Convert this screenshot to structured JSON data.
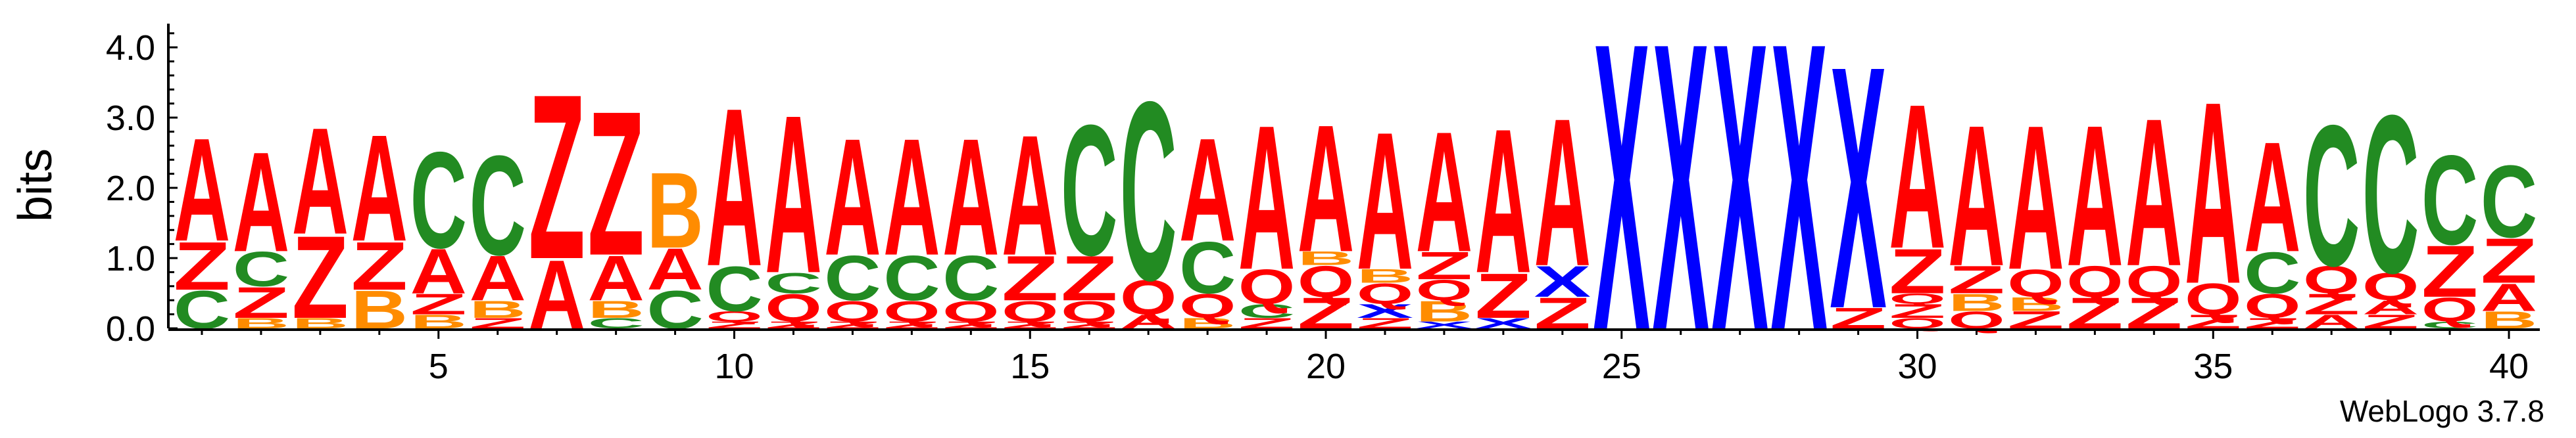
{
  "chart_data": {
    "type": "sequence-logo",
    "ylabel": "bits",
    "ylim": [
      0,
      4.3
    ],
    "y_ticks": [
      "0.0",
      "1.0",
      "2.0",
      "3.0",
      "4.0"
    ],
    "x_ticks": [
      "5",
      "10",
      "15",
      "20",
      "25",
      "30",
      "35",
      "40"
    ],
    "positions": 40,
    "colors": {
      "A": "#ff0000",
      "C": "#228b22",
      "Z": "#ff0000",
      "B": "#ff8c00",
      "Q": "#ff0000",
      "X": "#0000ff"
    },
    "columns": [
      {
        "pos": 1,
        "stack": [
          [
            "C",
            0.55
          ],
          [
            "Z",
            0.7
          ],
          [
            "A",
            1.5
          ]
        ]
      },
      {
        "pos": 2,
        "stack": [
          [
            "B",
            0.15
          ],
          [
            "Z",
            0.45
          ],
          [
            "C",
            0.5
          ],
          [
            "A",
            1.45
          ]
        ]
      },
      {
        "pos": 3,
        "stack": [
          [
            "B",
            0.15
          ],
          [
            "Z",
            1.2
          ],
          [
            "A",
            1.55
          ]
        ]
      },
      {
        "pos": 4,
        "stack": [
          [
            "B",
            0.55
          ],
          [
            "Z",
            0.7
          ],
          [
            "A",
            1.55
          ]
        ]
      },
      {
        "pos": 5,
        "stack": [
          [
            "B",
            0.2
          ],
          [
            "Z",
            0.3
          ],
          [
            "A",
            0.65
          ],
          [
            "C",
            1.4
          ]
        ]
      },
      {
        "pos": 6,
        "stack": [
          [
            "Z",
            0.15
          ],
          [
            "B",
            0.25
          ],
          [
            "A",
            0.65
          ],
          [
            "C",
            1.45
          ]
        ]
      },
      {
        "pos": 7,
        "stack": [
          [
            "A",
            1.0
          ],
          [
            "Z",
            2.4
          ]
        ]
      },
      {
        "pos": 8,
        "stack": [
          [
            "C",
            0.15
          ],
          [
            "B",
            0.25
          ],
          [
            "A",
            0.65
          ],
          [
            "Z",
            2.1
          ]
        ]
      },
      {
        "pos": 9,
        "stack": [
          [
            "C",
            0.55
          ],
          [
            "A",
            0.6
          ],
          [
            "B",
            1.1
          ]
        ]
      },
      {
        "pos": 10,
        "stack": [
          [
            "Z",
            0.1
          ],
          [
            "Q",
            0.15
          ],
          [
            "C",
            0.65
          ],
          [
            "A",
            2.3
          ]
        ]
      },
      {
        "pos": 11,
        "stack": [
          [
            "Z",
            0.1
          ],
          [
            "Q",
            0.4
          ],
          [
            "C",
            0.3
          ],
          [
            "A",
            2.3
          ]
        ]
      },
      {
        "pos": 12,
        "stack": [
          [
            "Z",
            0.1
          ],
          [
            "Q",
            0.3
          ],
          [
            "C",
            0.65
          ],
          [
            "A",
            1.7
          ]
        ]
      },
      {
        "pos": 13,
        "stack": [
          [
            "Z",
            0.1
          ],
          [
            "Q",
            0.3
          ],
          [
            "C",
            0.65
          ],
          [
            "A",
            1.7
          ]
        ]
      },
      {
        "pos": 14,
        "stack": [
          [
            "Z",
            0.1
          ],
          [
            "Q",
            0.3
          ],
          [
            "C",
            0.65
          ],
          [
            "A",
            1.7
          ]
        ]
      },
      {
        "pos": 15,
        "stack": [
          [
            "Z",
            0.1
          ],
          [
            "Q",
            0.3
          ],
          [
            "Z",
            0.65
          ],
          [
            "A",
            1.75
          ]
        ]
      },
      {
        "pos": 16,
        "stack": [
          [
            "Z",
            0.1
          ],
          [
            "Q",
            0.3
          ],
          [
            "Z",
            0.65
          ],
          [
            "C",
            1.9
          ]
        ]
      },
      {
        "pos": 17,
        "stack": [
          [
            "A",
            0.2
          ],
          [
            "Q",
            0.5
          ],
          [
            "C",
            2.6
          ]
        ]
      },
      {
        "pos": 18,
        "stack": [
          [
            "B",
            0.15
          ],
          [
            "Q",
            0.35
          ],
          [
            "C",
            0.75
          ],
          [
            "A",
            1.5
          ]
        ]
      },
      {
        "pos": 19,
        "stack": [
          [
            "Z",
            0.15
          ],
          [
            "C",
            0.2
          ],
          [
            "Q",
            0.5
          ],
          [
            "A",
            2.1
          ]
        ]
      },
      {
        "pos": 20,
        "stack": [
          [
            "Z",
            0.45
          ],
          [
            "Q",
            0.45
          ],
          [
            "B",
            0.2
          ],
          [
            "A",
            1.85
          ]
        ]
      },
      {
        "pos": 21,
        "stack": [
          [
            "Z",
            0.15
          ],
          [
            "X",
            0.2
          ],
          [
            "Q",
            0.3
          ],
          [
            "B",
            0.2
          ],
          [
            "A",
            2.0
          ]
        ]
      },
      {
        "pos": 22,
        "stack": [
          [
            "X",
            0.1
          ],
          [
            "B",
            0.3
          ],
          [
            "Q",
            0.3
          ],
          [
            "Z",
            0.4
          ],
          [
            "A",
            1.75
          ]
        ]
      },
      {
        "pos": 23,
        "stack": [
          [
            "X",
            0.15
          ],
          [
            "Z",
            0.65
          ],
          [
            "A",
            2.1
          ]
        ]
      },
      {
        "pos": 24,
        "stack": [
          [
            "Z",
            0.45
          ],
          [
            "X",
            0.45
          ],
          [
            "A",
            2.15
          ]
        ]
      },
      {
        "pos": 25,
        "stack": [
          [
            "X",
            4.18
          ]
        ]
      },
      {
        "pos": 26,
        "stack": [
          [
            "X",
            4.18
          ]
        ]
      },
      {
        "pos": 27,
        "stack": [
          [
            "X",
            4.18
          ]
        ]
      },
      {
        "pos": 28,
        "stack": [
          [
            "X",
            4.18
          ]
        ]
      },
      {
        "pos": 29,
        "stack": [
          [
            "Z",
            0.3
          ],
          [
            "X",
            3.53
          ]
        ]
      },
      {
        "pos": 30,
        "stack": [
          [
            "Q",
            0.15
          ],
          [
            "Z",
            0.2
          ],
          [
            "Q",
            0.15
          ],
          [
            "Z",
            0.65
          ],
          [
            "A",
            2.1
          ]
        ]
      },
      {
        "pos": 31,
        "stack": [
          [
            "Q",
            0.25
          ],
          [
            "B",
            0.25
          ],
          [
            "Z",
            0.4
          ],
          [
            "A",
            2.05
          ]
        ]
      },
      {
        "pos": 32,
        "stack": [
          [
            "Z",
            0.25
          ],
          [
            "B",
            0.2
          ],
          [
            "Q",
            0.4
          ],
          [
            "A",
            2.1
          ]
        ]
      },
      {
        "pos": 33,
        "stack": [
          [
            "Z",
            0.45
          ],
          [
            "Q",
            0.45
          ],
          [
            "A",
            2.05
          ]
        ]
      },
      {
        "pos": 34,
        "stack": [
          [
            "Z",
            0.45
          ],
          [
            "Q",
            0.45
          ],
          [
            "A",
            2.15
          ]
        ]
      },
      {
        "pos": 35,
        "stack": [
          [
            "Z",
            0.2
          ],
          [
            "Q",
            0.45
          ],
          [
            "A",
            2.65
          ]
        ]
      },
      {
        "pos": 36,
        "stack": [
          [
            "Z",
            0.15
          ],
          [
            "Q",
            0.35
          ],
          [
            "C",
            0.6
          ],
          [
            "A",
            1.6
          ]
        ]
      },
      {
        "pos": 37,
        "stack": [
          [
            "A",
            0.2
          ],
          [
            "Z",
            0.3
          ],
          [
            "Q",
            0.4
          ],
          [
            "C",
            2.05
          ]
        ]
      },
      {
        "pos": 38,
        "stack": [
          [
            "Z",
            0.2
          ],
          [
            "A",
            0.2
          ],
          [
            "Q",
            0.4
          ],
          [
            "C",
            2.3
          ]
        ]
      },
      {
        "pos": 39,
        "stack": [
          [
            "C",
            0.1
          ],
          [
            "Q",
            0.35
          ],
          [
            "Z",
            0.75
          ],
          [
            "C",
            1.3
          ]
        ]
      },
      {
        "pos": 40,
        "stack": [
          [
            "B",
            0.25
          ],
          [
            "A",
            0.4
          ],
          [
            "Z",
            0.65
          ],
          [
            "C",
            1.05
          ]
        ]
      }
    ]
  },
  "footer": {
    "version_label": "WebLogo 3.7.8"
  }
}
